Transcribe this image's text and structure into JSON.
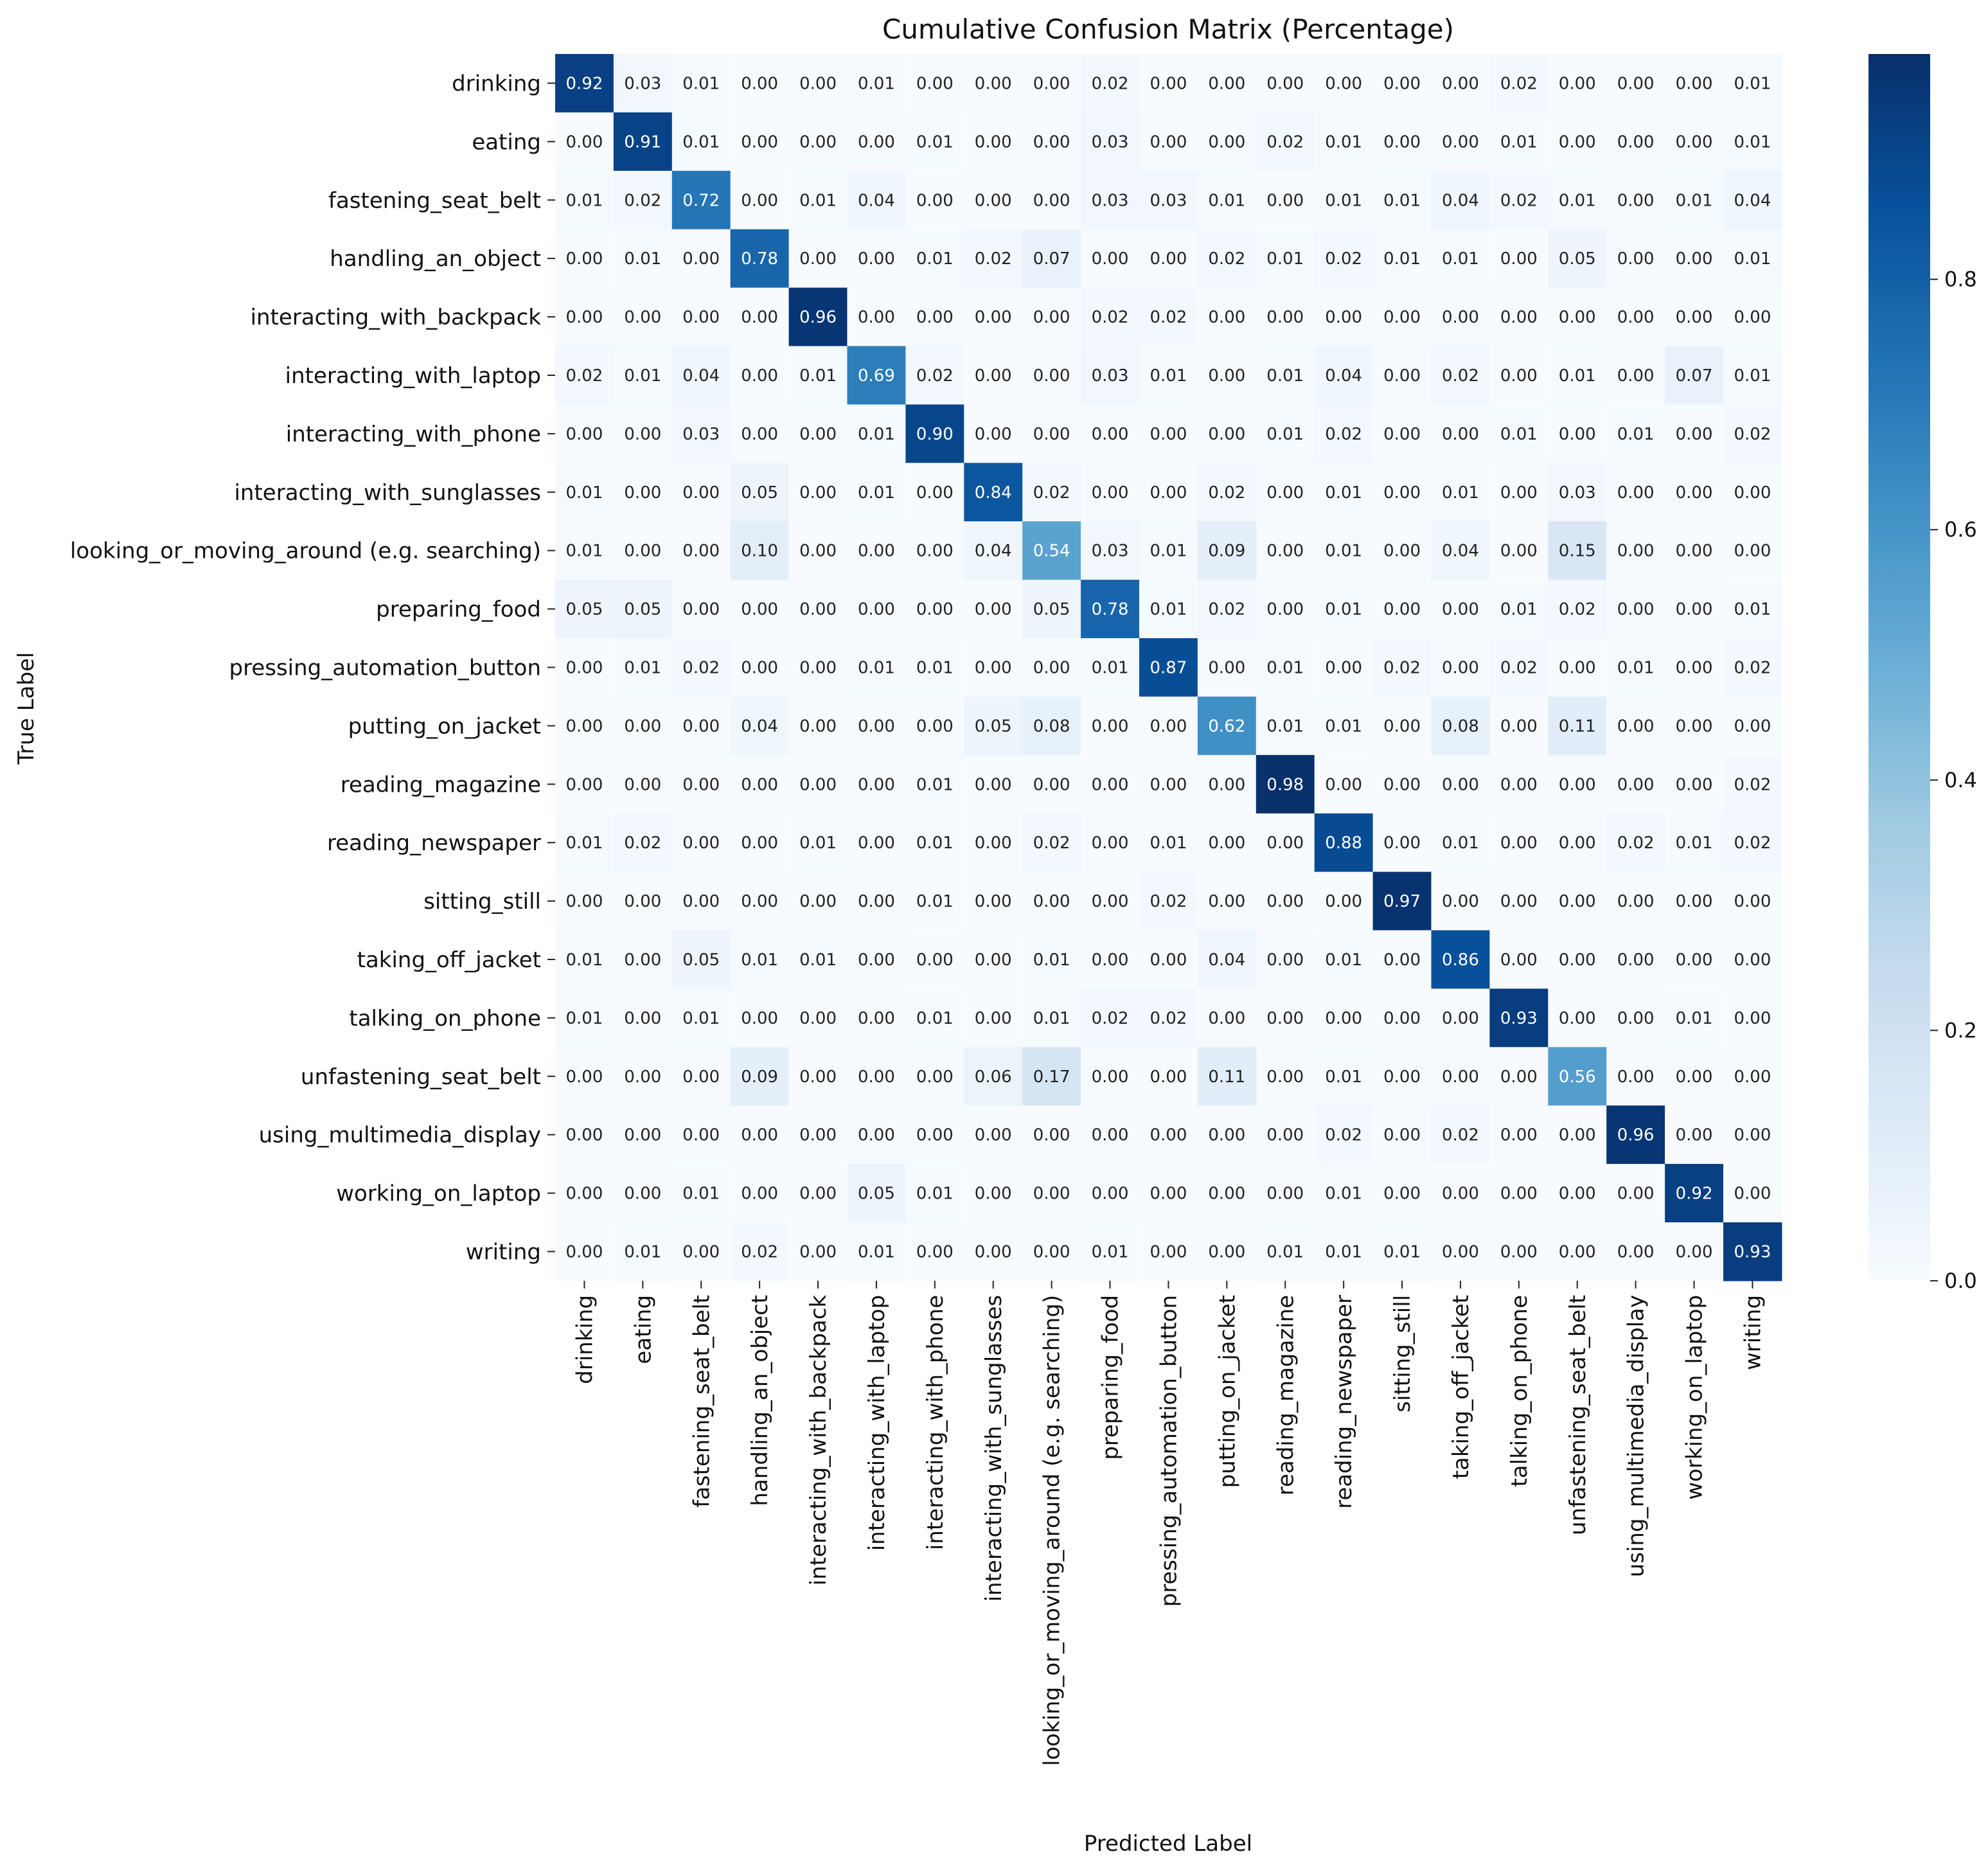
{
  "chart_data": {
    "type": "heatmap",
    "title": "Cumulative Confusion Matrix (Percentage)",
    "xlabel": "Predicted Label",
    "ylabel": "True Label",
    "labels": [
      "drinking",
      "eating",
      "fastening_seat_belt",
      "handling_an_object",
      "interacting_with_backpack",
      "interacting_with_laptop",
      "interacting_with_phone",
      "interacting_with_sunglasses",
      "looking_or_moving_around (e.g. searching)",
      "preparing_food",
      "pressing_automation_button",
      "putting_on_jacket",
      "reading_magazine",
      "reading_newspaper",
      "sitting_still",
      "taking_off_jacket",
      "talking_on_phone",
      "unfastening_seat_belt",
      "using_multimedia_display",
      "working_on_laptop",
      "writing"
    ],
    "matrix": [
      [
        0.92,
        0.03,
        0.01,
        0.0,
        0.0,
        0.01,
        0.0,
        0.0,
        0.0,
        0.02,
        0.0,
        0.0,
        0.0,
        0.0,
        0.0,
        0.0,
        0.02,
        0.0,
        0.0,
        0.0,
        0.01
      ],
      [
        0.0,
        0.91,
        0.01,
        0.0,
        0.0,
        0.0,
        0.01,
        0.0,
        0.0,
        0.03,
        0.0,
        0.0,
        0.02,
        0.01,
        0.0,
        0.0,
        0.01,
        0.0,
        0.0,
        0.0,
        0.01
      ],
      [
        0.01,
        0.02,
        0.72,
        0.0,
        0.01,
        0.04,
        0.0,
        0.0,
        0.0,
        0.03,
        0.03,
        0.01,
        0.0,
        0.01,
        0.01,
        0.04,
        0.02,
        0.01,
        0.0,
        0.01,
        0.04
      ],
      [
        0.0,
        0.01,
        0.0,
        0.78,
        0.0,
        0.0,
        0.01,
        0.02,
        0.07,
        0.0,
        0.0,
        0.02,
        0.01,
        0.02,
        0.01,
        0.01,
        0.0,
        0.05,
        0.0,
        0.0,
        0.01
      ],
      [
        0.0,
        0.0,
        0.0,
        0.0,
        0.96,
        0.0,
        0.0,
        0.0,
        0.0,
        0.02,
        0.02,
        0.0,
        0.0,
        0.0,
        0.0,
        0.0,
        0.0,
        0.0,
        0.0,
        0.0,
        0.0
      ],
      [
        0.02,
        0.01,
        0.04,
        0.0,
        0.01,
        0.69,
        0.02,
        0.0,
        0.0,
        0.03,
        0.01,
        0.0,
        0.01,
        0.04,
        0.0,
        0.02,
        0.0,
        0.01,
        0.0,
        0.07,
        0.01
      ],
      [
        0.0,
        0.0,
        0.03,
        0.0,
        0.0,
        0.01,
        0.9,
        0.0,
        0.0,
        0.0,
        0.0,
        0.0,
        0.01,
        0.02,
        0.0,
        0.0,
        0.01,
        0.0,
        0.01,
        0.0,
        0.02
      ],
      [
        0.01,
        0.0,
        0.0,
        0.05,
        0.0,
        0.01,
        0.0,
        0.84,
        0.02,
        0.0,
        0.0,
        0.02,
        0.0,
        0.01,
        0.0,
        0.01,
        0.0,
        0.03,
        0.0,
        0.0,
        0.0
      ],
      [
        0.01,
        0.0,
        0.0,
        0.1,
        0.0,
        0.0,
        0.0,
        0.04,
        0.54,
        0.03,
        0.01,
        0.09,
        0.0,
        0.01,
        0.0,
        0.04,
        0.0,
        0.15,
        0.0,
        0.0,
        0.0
      ],
      [
        0.05,
        0.05,
        0.0,
        0.0,
        0.0,
        0.0,
        0.0,
        0.0,
        0.05,
        0.78,
        0.01,
        0.02,
        0.0,
        0.01,
        0.0,
        0.0,
        0.01,
        0.02,
        0.0,
        0.0,
        0.01
      ],
      [
        0.0,
        0.01,
        0.02,
        0.0,
        0.0,
        0.01,
        0.01,
        0.0,
        0.0,
        0.01,
        0.87,
        0.0,
        0.01,
        0.0,
        0.02,
        0.0,
        0.02,
        0.0,
        0.01,
        0.0,
        0.02
      ],
      [
        0.0,
        0.0,
        0.0,
        0.04,
        0.0,
        0.0,
        0.0,
        0.05,
        0.08,
        0.0,
        0.0,
        0.62,
        0.01,
        0.01,
        0.0,
        0.08,
        0.0,
        0.11,
        0.0,
        0.0,
        0.0
      ],
      [
        0.0,
        0.0,
        0.0,
        0.0,
        0.0,
        0.0,
        0.01,
        0.0,
        0.0,
        0.0,
        0.0,
        0.0,
        0.98,
        0.0,
        0.0,
        0.0,
        0.0,
        0.0,
        0.0,
        0.0,
        0.02
      ],
      [
        0.01,
        0.02,
        0.0,
        0.0,
        0.01,
        0.0,
        0.01,
        0.0,
        0.02,
        0.0,
        0.01,
        0.0,
        0.0,
        0.88,
        0.0,
        0.01,
        0.0,
        0.0,
        0.02,
        0.01,
        0.02
      ],
      [
        0.0,
        0.0,
        0.0,
        0.0,
        0.0,
        0.0,
        0.01,
        0.0,
        0.0,
        0.0,
        0.02,
        0.0,
        0.0,
        0.0,
        0.97,
        0.0,
        0.0,
        0.0,
        0.0,
        0.0,
        0.0
      ],
      [
        0.01,
        0.0,
        0.05,
        0.01,
        0.01,
        0.0,
        0.0,
        0.0,
        0.01,
        0.0,
        0.0,
        0.04,
        0.0,
        0.01,
        0.0,
        0.86,
        0.0,
        0.0,
        0.0,
        0.0,
        0.0
      ],
      [
        0.01,
        0.0,
        0.01,
        0.0,
        0.0,
        0.0,
        0.01,
        0.0,
        0.01,
        0.02,
        0.02,
        0.0,
        0.0,
        0.0,
        0.0,
        0.0,
        0.93,
        0.0,
        0.0,
        0.01,
        0.0
      ],
      [
        0.0,
        0.0,
        0.0,
        0.09,
        0.0,
        0.0,
        0.0,
        0.06,
        0.17,
        0.0,
        0.0,
        0.11,
        0.0,
        0.01,
        0.0,
        0.0,
        0.0,
        0.56,
        0.0,
        0.0,
        0.0
      ],
      [
        0.0,
        0.0,
        0.0,
        0.0,
        0.0,
        0.0,
        0.0,
        0.0,
        0.0,
        0.0,
        0.0,
        0.0,
        0.0,
        0.02,
        0.0,
        0.02,
        0.0,
        0.0,
        0.96,
        0.0,
        0.0
      ],
      [
        0.0,
        0.0,
        0.01,
        0.0,
        0.0,
        0.05,
        0.01,
        0.0,
        0.0,
        0.0,
        0.0,
        0.0,
        0.0,
        0.01,
        0.0,
        0.0,
        0.0,
        0.0,
        0.0,
        0.92,
        0.0
      ],
      [
        0.0,
        0.01,
        0.0,
        0.02,
        0.0,
        0.01,
        0.0,
        0.0,
        0.0,
        0.01,
        0.0,
        0.0,
        0.01,
        0.01,
        0.01,
        0.0,
        0.0,
        0.0,
        0.0,
        0.0,
        0.93
      ]
    ],
    "colorbar": {
      "colormap": "Blues",
      "range": [
        0.0,
        0.98
      ],
      "ticks": [
        "0.0",
        "0.2",
        "0.4",
        "0.6",
        "0.8"
      ]
    },
    "grid": false
  }
}
